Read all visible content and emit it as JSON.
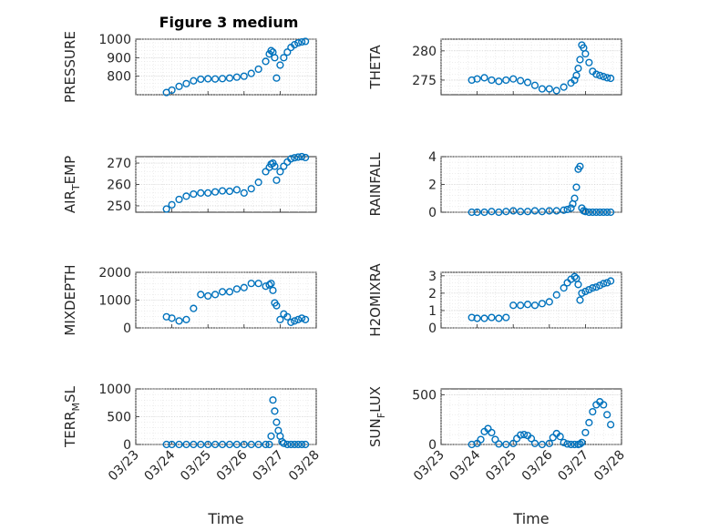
{
  "figure": {
    "title": "Figure 3 medium",
    "marker_color": "#0072BD"
  },
  "chart_data": [
    {
      "type": "scatter",
      "ylabel": "PRESSURE",
      "ylabel_sub": "",
      "ylabel_rest": "",
      "ylim": [
        700,
        1000
      ],
      "yticks": [
        800,
        900,
        1000
      ],
      "x": [
        23.85,
        24.0,
        24.2,
        24.4,
        24.6,
        24.8,
        25.0,
        25.2,
        25.4,
        25.6,
        25.8,
        26.0,
        26.2,
        26.4,
        26.6,
        26.7,
        26.75,
        26.8,
        26.85,
        26.9,
        27.0,
        27.1,
        27.2,
        27.3,
        27.4,
        27.5,
        27.6,
        27.7
      ],
      "y": [
        712,
        725,
        745,
        760,
        775,
        784,
        786,
        785,
        787,
        790,
        795,
        800,
        815,
        838,
        880,
        920,
        938,
        930,
        900,
        790,
        860,
        900,
        930,
        955,
        970,
        980,
        985,
        988
      ],
      "xlabel": ""
    },
    {
      "type": "scatter",
      "ylabel": "THETA",
      "ylabel_sub": "",
      "ylabel_rest": "",
      "ylim": [
        272.5,
        282
      ],
      "yticks": [
        275,
        280
      ],
      "x": [
        23.85,
        24.0,
        24.2,
        24.4,
        24.6,
        24.8,
        25.0,
        25.2,
        25.4,
        25.6,
        25.8,
        26.0,
        26.2,
        26.4,
        26.6,
        26.7,
        26.75,
        26.8,
        26.85,
        26.9,
        26.95,
        27.0,
        27.1,
        27.2,
        27.3,
        27.4,
        27.5,
        27.6,
        27.7
      ],
      "y": [
        275.0,
        275.2,
        275.4,
        275.0,
        274.8,
        275.0,
        275.2,
        274.9,
        274.6,
        274.1,
        273.5,
        273.5,
        273.2,
        273.8,
        274.5,
        275.0,
        275.8,
        277.0,
        278.5,
        281.0,
        280.5,
        279.5,
        278.0,
        276.5,
        276.0,
        275.8,
        275.6,
        275.4,
        275.3
      ],
      "xlabel": ""
    },
    {
      "type": "scatter",
      "ylabel": "AIR",
      "ylabel_sub": "T",
      "ylabel_rest": "EMP",
      "ylim": [
        247,
        273
      ],
      "yticks": [
        250,
        260,
        270
      ],
      "x": [
        23.85,
        24.0,
        24.2,
        24.4,
        24.6,
        24.8,
        25.0,
        25.2,
        25.4,
        25.6,
        25.8,
        26.0,
        26.2,
        26.4,
        26.6,
        26.7,
        26.75,
        26.8,
        26.85,
        26.9,
        27.0,
        27.1,
        27.2,
        27.3,
        27.4,
        27.5,
        27.6,
        27.7
      ],
      "y": [
        248.5,
        250.5,
        253.0,
        254.5,
        255.5,
        256.0,
        256.0,
        256.5,
        257.0,
        256.8,
        257.5,
        256.0,
        258.0,
        261.0,
        266.0,
        268.0,
        269.5,
        270.0,
        268.5,
        262.0,
        266.0,
        268.5,
        270.5,
        272.0,
        272.5,
        272.8,
        273.0,
        272.6
      ],
      "xlabel": ""
    },
    {
      "type": "scatter",
      "ylabel": "RAINFALL",
      "ylabel_sub": "",
      "ylabel_rest": "",
      "ylim": [
        0,
        4
      ],
      "yticks": [
        0,
        2,
        4
      ],
      "x": [
        23.85,
        24.0,
        24.2,
        24.4,
        24.6,
        24.8,
        25.0,
        25.2,
        25.4,
        25.6,
        25.8,
        26.0,
        26.2,
        26.4,
        26.5,
        26.6,
        26.65,
        26.7,
        26.75,
        26.8,
        26.85,
        26.9,
        26.95,
        27.0,
        27.1,
        27.2,
        27.3,
        27.4,
        27.5,
        27.6,
        27.7
      ],
      "y": [
        0.0,
        0.0,
        0.0,
        0.05,
        0.0,
        0.05,
        0.1,
        0.05,
        0.05,
        0.1,
        0.05,
        0.1,
        0.1,
        0.15,
        0.2,
        0.3,
        0.6,
        1.0,
        1.8,
        3.1,
        3.3,
        0.3,
        0.1,
        0.05,
        0.0,
        0.0,
        0.0,
        0.0,
        0.0,
        0.0,
        0.0
      ],
      "xlabel": ""
    },
    {
      "type": "scatter",
      "ylabel": "MIXDEPTH",
      "ylabel_sub": "",
      "ylabel_rest": "",
      "ylim": [
        0,
        2000
      ],
      "yticks": [
        0,
        1000,
        2000
      ],
      "x": [
        23.85,
        24.0,
        24.2,
        24.4,
        24.6,
        24.8,
        25.0,
        25.2,
        25.4,
        25.6,
        25.8,
        26.0,
        26.2,
        26.4,
        26.6,
        26.7,
        26.75,
        26.8,
        26.85,
        26.9,
        27.0,
        27.1,
        27.2,
        27.3,
        27.4,
        27.5,
        27.6,
        27.7
      ],
      "y": [
        400,
        350,
        250,
        300,
        700,
        1200,
        1150,
        1200,
        1300,
        1300,
        1400,
        1450,
        1600,
        1600,
        1500,
        1550,
        1600,
        1350,
        900,
        800,
        300,
        500,
        400,
        200,
        250,
        300,
        350,
        300
      ],
      "xlabel": ""
    },
    {
      "type": "scatter",
      "ylabel": "H2OMIXRA",
      "ylabel_sub": "",
      "ylabel_rest": "",
      "ylim": [
        0,
        3.2
      ],
      "yticks": [
        0,
        1,
        2,
        3
      ],
      "x": [
        23.85,
        24.0,
        24.2,
        24.4,
        24.6,
        24.8,
        25.0,
        25.2,
        25.4,
        25.6,
        25.8,
        26.0,
        26.2,
        26.4,
        26.5,
        26.6,
        26.7,
        26.75,
        26.8,
        26.85,
        26.9,
        27.0,
        27.1,
        27.2,
        27.3,
        27.4,
        27.5,
        27.6,
        27.7
      ],
      "y": [
        0.6,
        0.55,
        0.55,
        0.6,
        0.55,
        0.6,
        1.3,
        1.3,
        1.35,
        1.3,
        1.4,
        1.5,
        1.9,
        2.3,
        2.6,
        2.8,
        2.95,
        2.85,
        2.5,
        1.6,
        2.0,
        2.1,
        2.2,
        2.3,
        2.35,
        2.45,
        2.55,
        2.6,
        2.7
      ],
      "xlabel": ""
    },
    {
      "type": "scatter",
      "ylabel": "TERR",
      "ylabel_sub": "M",
      "ylabel_rest": "SL",
      "ylim": [
        0,
        1000
      ],
      "yticks": [
        0,
        500,
        1000
      ],
      "x": [
        23.85,
        24.0,
        24.2,
        24.4,
        24.6,
        24.8,
        25.0,
        25.2,
        25.4,
        25.6,
        25.8,
        26.0,
        26.2,
        26.4,
        26.6,
        26.7,
        26.75,
        26.8,
        26.85,
        26.9,
        26.95,
        27.0,
        27.05,
        27.1,
        27.2,
        27.3,
        27.4,
        27.5,
        27.6,
        27.7
      ],
      "y": [
        0,
        0,
        0,
        0,
        0,
        0,
        0,
        0,
        0,
        0,
        0,
        0,
        0,
        0,
        0,
        0,
        150,
        800,
        600,
        400,
        250,
        150,
        50,
        20,
        0,
        0,
        0,
        0,
        0,
        0
      ],
      "xlabel": "Time"
    },
    {
      "type": "scatter",
      "ylabel": "SUN",
      "ylabel_sub": "F",
      "ylabel_rest": "LUX",
      "ylim": [
        0,
        560
      ],
      "yticks": [
        0,
        500
      ],
      "x": [
        23.85,
        24.0,
        24.1,
        24.2,
        24.3,
        24.4,
        24.5,
        24.6,
        24.8,
        25.0,
        25.1,
        25.2,
        25.3,
        25.4,
        25.5,
        25.6,
        25.8,
        26.0,
        26.1,
        26.2,
        26.3,
        26.4,
        26.5,
        26.6,
        26.7,
        26.8,
        26.85,
        26.9,
        27.0,
        27.1,
        27.2,
        27.3,
        27.4,
        27.5,
        27.6,
        27.7
      ],
      "y": [
        0,
        10,
        50,
        130,
        160,
        120,
        50,
        5,
        0,
        10,
        60,
        95,
        100,
        90,
        60,
        10,
        0,
        10,
        70,
        110,
        80,
        20,
        5,
        0,
        0,
        0,
        5,
        20,
        120,
        220,
        330,
        400,
        430,
        400,
        300,
        200
      ],
      "xlabel": "Time"
    }
  ],
  "x_axis": {
    "xlim": [
      23,
      28
    ],
    "ticks": [
      23,
      24,
      25,
      26,
      27,
      28
    ],
    "tick_labels": [
      "03/23",
      "03/24",
      "03/25",
      "03/26",
      "03/27",
      "03/28"
    ]
  }
}
